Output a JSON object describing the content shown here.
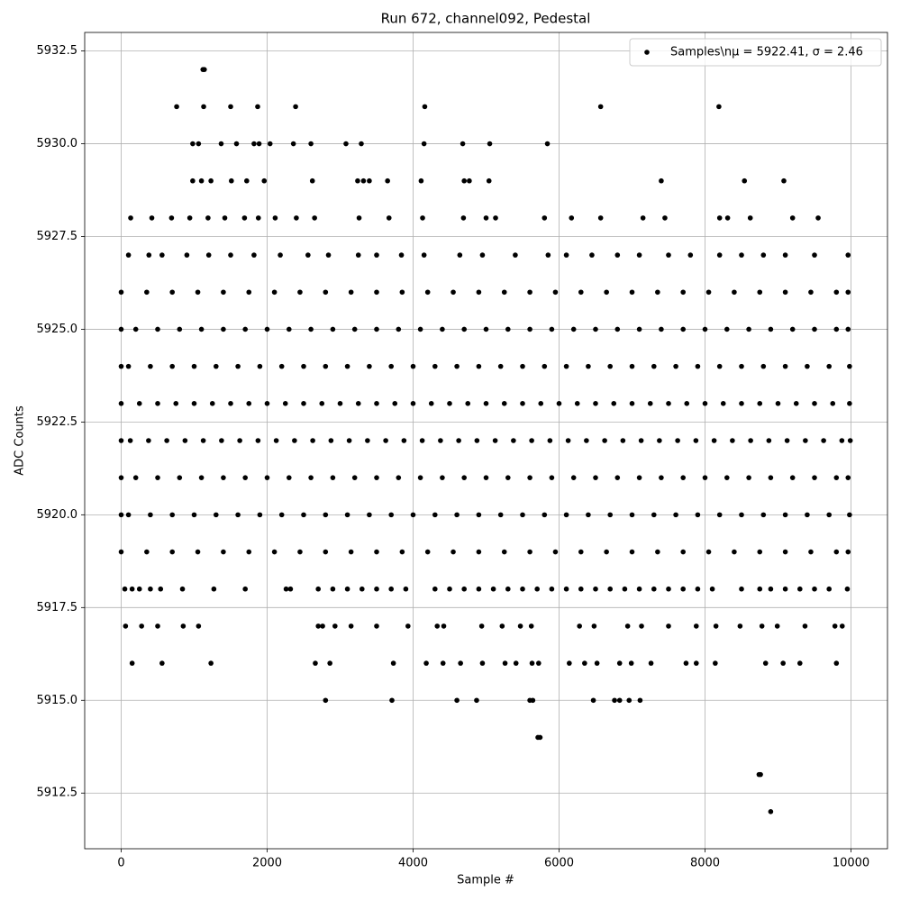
{
  "chart_data": {
    "type": "scatter",
    "title": "Run 672, channel092, Pedestal",
    "xlabel": "Sample #",
    "ylabel": "ADC Counts",
    "xlim": [
      -500,
      10500
    ],
    "ylim": [
      5911,
      5933
    ],
    "xticks": [
      0,
      2000,
      4000,
      6000,
      8000,
      10000
    ],
    "yticks": [
      5912.5,
      {
        "value": 5915,
        "label": "5915.0"
      },
      5917.5,
      {
        "value": 5920,
        "label": "5920.0"
      },
      5922.5,
      {
        "value": 5925,
        "label": "5925.0"
      },
      5927.5,
      {
        "value": 5930,
        "label": "5930.0"
      },
      5932.5
    ],
    "grid": true,
    "legend_loc": "upper right",
    "series": [
      {
        "name": "Samples\\nμ = 5922.41, σ = 2.46",
        "color": "#000000",
        "x": [
          1120,
          1140,
          760,
          1130,
          1500,
          1870,
          2390,
          4160,
          6570,
          8190,
          980,
          1060,
          1370,
          1580,
          1820,
          1890,
          2040,
          2360,
          2600,
          3080,
          3290,
          4150,
          4680,
          5050,
          5840,
          980,
          1100,
          1230,
          1510,
          1720,
          1960,
          2620,
          3240,
          3320,
          3400,
          3650,
          4110,
          4700,
          4770,
          5040,
          7400,
          8540,
          9080,
          130,
          420,
          690,
          940,
          1190,
          1420,
          1690,
          1880,
          2110,
          2400,
          2650,
          3260,
          3670,
          4130,
          4690,
          5000,
          5130,
          5800,
          6170,
          6570,
          7150,
          7450,
          8200,
          8310,
          8620,
          9200,
          9550,
          100,
          380,
          560,
          900,
          1200,
          1500,
          1820,
          2180,
          2560,
          2840,
          3250,
          3500,
          3840,
          4150,
          4640,
          4950,
          5400,
          5850,
          6100,
          6450,
          6800,
          7100,
          7500,
          7800,
          8200,
          8500,
          8800,
          9100,
          9500,
          9960,
          0,
          350,
          700,
          1050,
          1400,
          1750,
          2100,
          2450,
          2800,
          3150,
          3500,
          3850,
          4200,
          4550,
          4900,
          5250,
          5600,
          5950,
          6300,
          6650,
          7000,
          7350,
          7700,
          8050,
          8400,
          8750,
          9100,
          9450,
          9800,
          9960,
          0,
          200,
          500,
          800,
          1100,
          1400,
          1700,
          2000,
          2300,
          2600,
          2900,
          3200,
          3500,
          3800,
          4100,
          4400,
          4700,
          5000,
          5300,
          5600,
          5900,
          6200,
          6500,
          6800,
          7100,
          7400,
          7700,
          8000,
          8300,
          8600,
          8900,
          9200,
          9500,
          9800,
          9960,
          0,
          100,
          400,
          700,
          1000,
          1300,
          1600,
          1900,
          2200,
          2500,
          2800,
          3100,
          3400,
          3700,
          4000,
          4300,
          4600,
          4900,
          5200,
          5500,
          5800,
          6100,
          6400,
          6700,
          7000,
          7300,
          7600,
          7900,
          8200,
          8500,
          8800,
          9100,
          9400,
          9700,
          9980,
          0,
          250,
          500,
          750,
          1000,
          1250,
          1500,
          1750,
          2000,
          2250,
          2500,
          2750,
          3000,
          3250,
          3500,
          3750,
          4000,
          4250,
          4500,
          4750,
          5000,
          5250,
          5500,
          5750,
          6000,
          6250,
          6500,
          6750,
          7000,
          7250,
          7500,
          7750,
          8000,
          8250,
          8500,
          8750,
          9000,
          9250,
          9500,
          9750,
          9980,
          0,
          125,
          375,
          625,
          875,
          1125,
          1375,
          1625,
          1875,
          2125,
          2375,
          2625,
          2875,
          3125,
          3375,
          3625,
          3875,
          4125,
          4375,
          4625,
          4875,
          5125,
          5375,
          5625,
          5875,
          6125,
          6375,
          6625,
          6875,
          7125,
          7375,
          7625,
          7875,
          8125,
          8375,
          8625,
          8875,
          9125,
          9375,
          9625,
          9875,
          9990,
          0,
          200,
          500,
          800,
          1100,
          1400,
          1700,
          2000,
          2300,
          2600,
          2900,
          3200,
          3500,
          3800,
          4100,
          4400,
          4700,
          5000,
          5300,
          5600,
          5900,
          6200,
          6500,
          6800,
          7100,
          7400,
          7700,
          8000,
          8300,
          8600,
          8900,
          9200,
          9500,
          9800,
          9960,
          0,
          100,
          400,
          700,
          1000,
          1300,
          1600,
          1900,
          2200,
          2500,
          2800,
          3100,
          3400,
          3700,
          4000,
          4300,
          4600,
          4900,
          5200,
          5500,
          5800,
          6100,
          6400,
          6700,
          7000,
          7300,
          7600,
          7900,
          8200,
          8500,
          8800,
          9100,
          9400,
          9700,
          9980,
          0,
          350,
          700,
          1050,
          1400,
          1750,
          2100,
          2450,
          2800,
          3150,
          3500,
          3850,
          4200,
          4550,
          4900,
          5250,
          5600,
          5950,
          6300,
          6650,
          7000,
          7350,
          7700,
          8050,
          8400,
          8750,
          9100,
          9450,
          9800,
          9960,
          50,
          150,
          250,
          400,
          540,
          840,
          1270,
          1700,
          2260,
          2320,
          2700,
          2900,
          3100,
          3300,
          3500,
          3700,
          3900,
          4300,
          4500,
          4700,
          4900,
          5100,
          5300,
          5500,
          5700,
          5900,
          6100,
          6300,
          6500,
          6700,
          6900,
          7100,
          7300,
          7500,
          7700,
          7900,
          8100,
          8500,
          8750,
          8900,
          9100,
          9300,
          9500,
          9700,
          9950,
          60,
          280,
          500,
          850,
          1060,
          2700,
          2760,
          2930,
          3150,
          3500,
          3930,
          4330,
          4420,
          4940,
          5220,
          5470,
          5620,
          6280,
          6480,
          6940,
          7130,
          7500,
          7880,
          8150,
          8480,
          8780,
          8990,
          9370,
          9780,
          9880,
          150,
          560,
          1230,
          2660,
          2860,
          3730,
          4180,
          4410,
          4650,
          4950,
          5260,
          5410,
          5630,
          5720,
          6140,
          6350,
          6520,
          6830,
          6990,
          7260,
          7740,
          7880,
          8140,
          8830,
          9070,
          9300,
          9800,
          2800,
          3710,
          4600,
          4870,
          5600,
          5640,
          6470,
          6760,
          6830,
          6960,
          7110,
          5710,
          5740,
          8740,
          8760,
          8900
        ],
        "values": [
          5932,
          5932,
          5931,
          5931,
          5931,
          5931,
          5931,
          5931,
          5931,
          5931,
          5930,
          5930,
          5930,
          5930,
          5930,
          5930,
          5930,
          5930,
          5930,
          5930,
          5930,
          5930,
          5930,
          5930,
          5930,
          5929,
          5929,
          5929,
          5929,
          5929,
          5929,
          5929,
          5929,
          5929,
          5929,
          5929,
          5929,
          5929,
          5929,
          5929,
          5929,
          5929,
          5929,
          5928,
          5928,
          5928,
          5928,
          5928,
          5928,
          5928,
          5928,
          5928,
          5928,
          5928,
          5928,
          5928,
          5928,
          5928,
          5928,
          5928,
          5928,
          5928,
          5928,
          5928,
          5928,
          5928,
          5928,
          5928,
          5928,
          5928,
          5927,
          5927,
          5927,
          5927,
          5927,
          5927,
          5927,
          5927,
          5927,
          5927,
          5927,
          5927,
          5927,
          5927,
          5927,
          5927,
          5927,
          5927,
          5927,
          5927,
          5927,
          5927,
          5927,
          5927,
          5927,
          5927,
          5927,
          5927,
          5927,
          5927,
          5926,
          5926,
          5926,
          5926,
          5926,
          5926,
          5926,
          5926,
          5926,
          5926,
          5926,
          5926,
          5926,
          5926,
          5926,
          5926,
          5926,
          5926,
          5926,
          5926,
          5926,
          5926,
          5926,
          5926,
          5926,
          5926,
          5926,
          5926,
          5926,
          5926,
          5925,
          5925,
          5925,
          5925,
          5925,
          5925,
          5925,
          5925,
          5925,
          5925,
          5925,
          5925,
          5925,
          5925,
          5925,
          5925,
          5925,
          5925,
          5925,
          5925,
          5925,
          5925,
          5925,
          5925,
          5925,
          5925,
          5925,
          5925,
          5925,
          5925,
          5925,
          5925,
          5925,
          5925,
          5925,
          5924,
          5924,
          5924,
          5924,
          5924,
          5924,
          5924,
          5924,
          5924,
          5924,
          5924,
          5924,
          5924,
          5924,
          5924,
          5924,
          5924,
          5924,
          5924,
          5924,
          5924,
          5924,
          5924,
          5924,
          5924,
          5924,
          5924,
          5924,
          5924,
          5924,
          5924,
          5924,
          5924,
          5924,
          5924,
          5923,
          5923,
          5923,
          5923,
          5923,
          5923,
          5923,
          5923,
          5923,
          5923,
          5923,
          5923,
          5923,
          5923,
          5923,
          5923,
          5923,
          5923,
          5923,
          5923,
          5923,
          5923,
          5923,
          5923,
          5923,
          5923,
          5923,
          5923,
          5923,
          5923,
          5923,
          5923,
          5923,
          5923,
          5923,
          5923,
          5923,
          5923,
          5923,
          5923,
          5923,
          5922,
          5922,
          5922,
          5922,
          5922,
          5922,
          5922,
          5922,
          5922,
          5922,
          5922,
          5922,
          5922,
          5922,
          5922,
          5922,
          5922,
          5922,
          5922,
          5922,
          5922,
          5922,
          5922,
          5922,
          5922,
          5922,
          5922,
          5922,
          5922,
          5922,
          5922,
          5922,
          5922,
          5922,
          5922,
          5922,
          5922,
          5922,
          5922,
          5922,
          5922,
          5922,
          5921,
          5921,
          5921,
          5921,
          5921,
          5921,
          5921,
          5921,
          5921,
          5921,
          5921,
          5921,
          5921,
          5921,
          5921,
          5921,
          5921,
          5921,
          5921,
          5921,
          5921,
          5921,
          5921,
          5921,
          5921,
          5921,
          5921,
          5921,
          5921,
          5921,
          5921,
          5921,
          5921,
          5921,
          5921,
          5920,
          5920,
          5920,
          5920,
          5920,
          5920,
          5920,
          5920,
          5920,
          5920,
          5920,
          5920,
          5920,
          5920,
          5920,
          5920,
          5920,
          5920,
          5920,
          5920,
          5920,
          5920,
          5920,
          5920,
          5920,
          5920,
          5920,
          5920,
          5920,
          5920,
          5920,
          5920,
          5920,
          5920,
          5920,
          5919,
          5919,
          5919,
          5919,
          5919,
          5919,
          5919,
          5919,
          5919,
          5919,
          5919,
          5919,
          5919,
          5919,
          5919,
          5919,
          5919,
          5919,
          5919,
          5919,
          5919,
          5919,
          5919,
          5919,
          5919,
          5919,
          5919,
          5919,
          5919,
          5919,
          5918,
          5918,
          5918,
          5918,
          5918,
          5918,
          5918,
          5918,
          5918,
          5918,
          5918,
          5918,
          5918,
          5918,
          5918,
          5918,
          5918,
          5918,
          5918,
          5918,
          5918,
          5918,
          5918,
          5918,
          5918,
          5918,
          5918,
          5918,
          5918,
          5918,
          5918,
          5918,
          5918,
          5918,
          5918,
          5918,
          5918,
          5918,
          5918,
          5918,
          5918,
          5918,
          5918,
          5918,
          5918,
          5917,
          5917,
          5917,
          5917,
          5917,
          5917,
          5917,
          5917,
          5917,
          5917,
          5917,
          5917,
          5917,
          5917,
          5917,
          5917,
          5917,
          5917,
          5917,
          5917,
          5917,
          5917,
          5917,
          5917,
          5917,
          5917,
          5917,
          5917,
          5917,
          5917,
          5916,
          5916,
          5916,
          5916,
          5916,
          5916,
          5916,
          5916,
          5916,
          5916,
          5916,
          5916,
          5916,
          5916,
          5916,
          5916,
          5916,
          5916,
          5916,
          5916,
          5916,
          5916,
          5916,
          5916,
          5916,
          5916,
          5916,
          5915,
          5915,
          5915,
          5915,
          5915,
          5915,
          5915,
          5915,
          5915,
          5915,
          5915,
          5914,
          5914,
          5913,
          5913,
          5912
        ]
      }
    ]
  }
}
